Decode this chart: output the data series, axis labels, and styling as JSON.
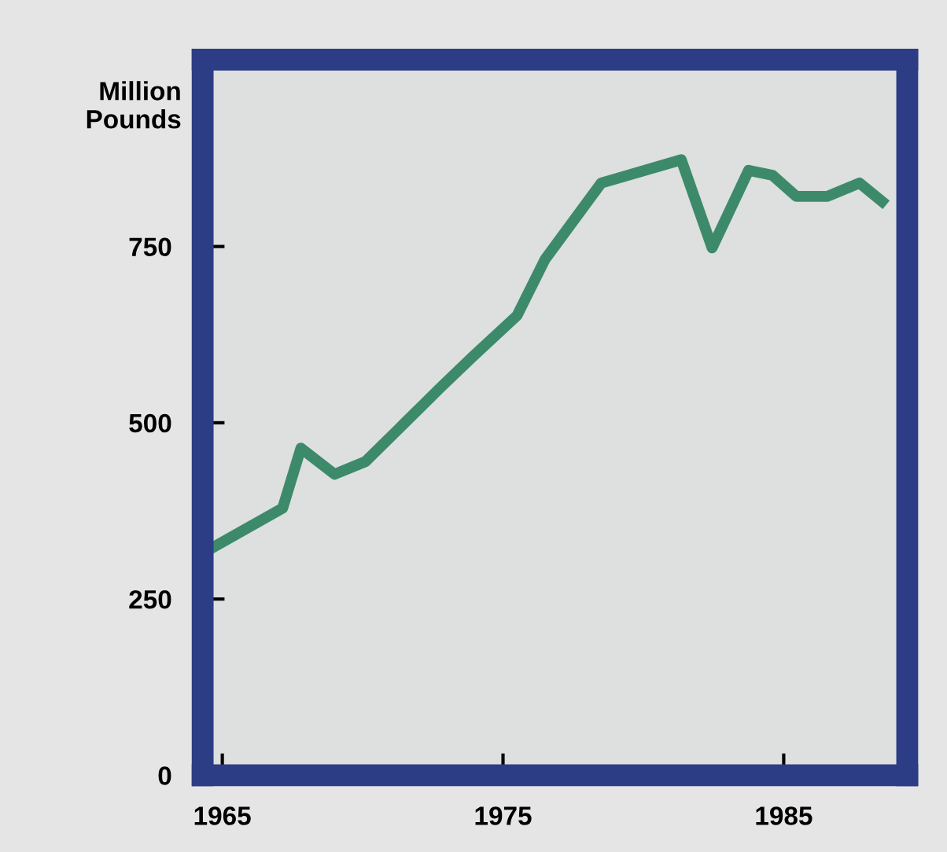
{
  "chart_data": {
    "type": "line",
    "ylabel": "Million\nPounds",
    "x": [
      1964.35,
      1967.15,
      1967.8,
      1969.0,
      1970.1,
      1971.25,
      1972.75,
      1973.9,
      1975.5,
      1976.5,
      1978.5,
      1981.35,
      1982.45,
      1983.75,
      1984.6,
      1985.45,
      1986.55,
      1987.7,
      1988.5
    ],
    "series": [
      {
        "color": "#3d8a6b",
        "values": [
          316,
          379,
          464,
          427,
          445,
          490,
          549,
          593,
          652,
          732,
          840,
          873,
          748,
          858,
          851,
          821,
          821,
          840,
          814
        ]
      }
    ],
    "xlim": [
      1964.3,
      1989.4
    ],
    "ylim": [
      0,
      1015
    ],
    "xticks": [
      1965,
      1975,
      1985
    ],
    "yticks": [
      0,
      250,
      500,
      750
    ],
    "grid": false,
    "legend": false,
    "marker": "none",
    "line_style": "solid"
  }
}
